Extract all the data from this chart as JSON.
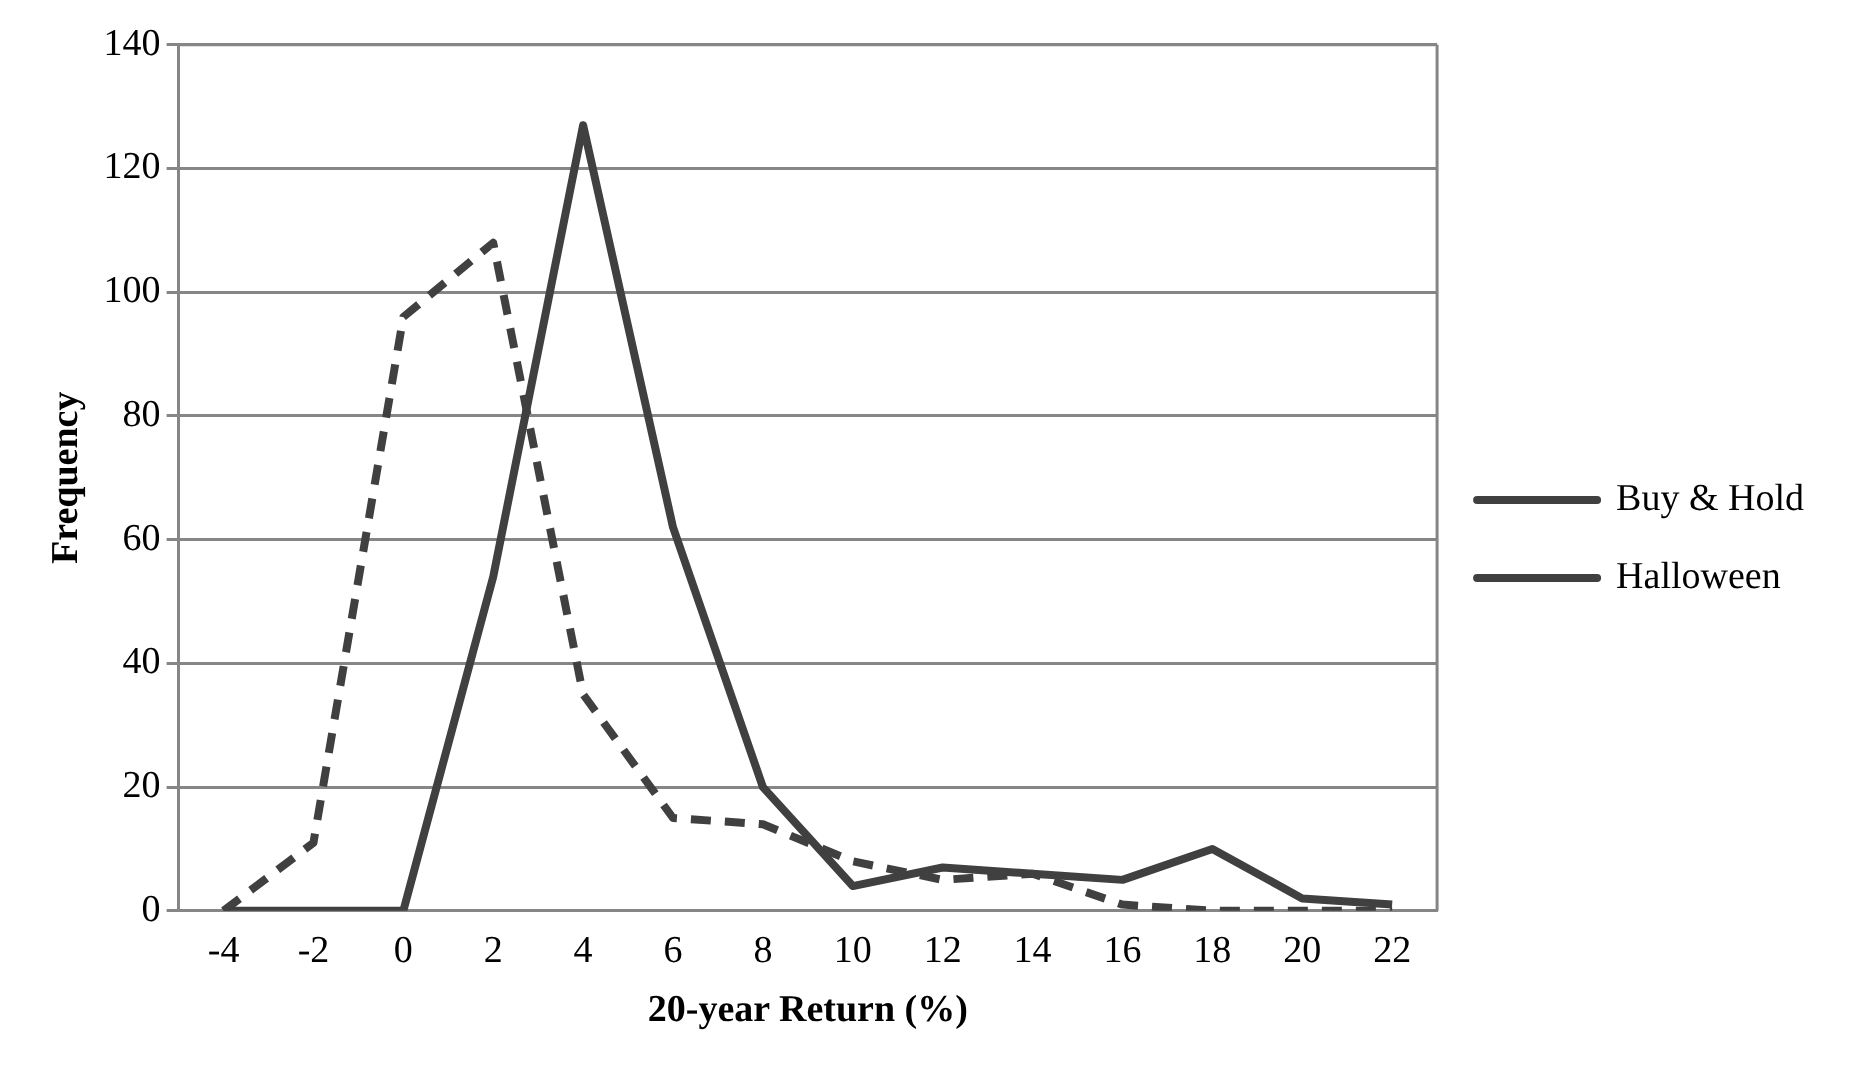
{
  "chart_data": {
    "type": "line",
    "xlabel": "20-year Return (%)",
    "ylabel": "Frequency",
    "categories": [
      "-4",
      "-2",
      "0",
      "2",
      "4",
      "6",
      "8",
      "10",
      "12",
      "14",
      "16",
      "18",
      "20",
      "22"
    ],
    "series": [
      {
        "name": "Buy & Hold",
        "color": "#404040",
        "line_style": "dashed",
        "values": [
          0,
          11,
          96,
          108,
          35,
          15,
          14,
          8,
          5,
          6,
          1,
          0,
          0,
          0
        ]
      },
      {
        "name": "Halloween",
        "color": "#404040",
        "line_style": "solid",
        "values": [
          0,
          0,
          0,
          54,
          127,
          62,
          20,
          4,
          7,
          6,
          5,
          10,
          2,
          1
        ]
      }
    ],
    "ylim": [
      0,
      140
    ],
    "yticks": [
      0,
      20,
      40,
      60,
      80,
      100,
      120,
      140
    ],
    "grid": "y",
    "legend": "right",
    "marker": "none"
  }
}
